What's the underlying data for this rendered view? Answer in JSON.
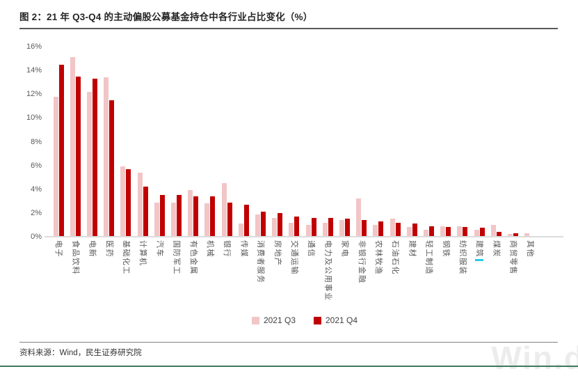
{
  "page": {
    "title": "图 2：21 年 Q3-Q4 的主动偏股公募基金持仓中各行业占比变化（%）",
    "source": "资料来源：Wind，民生证券研究院",
    "watermark": "Win.d"
  },
  "chart_data": {
    "type": "bar",
    "title": "21 年 Q3-Q4 的主动偏股公募基金持仓中各行业占比变化（%）",
    "xlabel": "",
    "ylabel": "",
    "ylim": [
      0,
      16
    ],
    "ytick_labels": [
      "16%",
      "14%",
      "12%",
      "10%",
      "8%",
      "6%",
      "4%",
      "2%",
      "0%"
    ],
    "grid": false,
    "legend_position": "bottom",
    "categories": [
      "电子",
      "食品饮料",
      "电新",
      "医药",
      "基础化工",
      "计算机",
      "汽车",
      "国防军工",
      "有色金属",
      "机械",
      "银行",
      "传媒",
      "消费者服务",
      "房地产",
      "交通运输",
      "通信",
      "电力及公用事业",
      "家电",
      "非银行金融",
      "农林牧渔",
      "石油石化",
      "建材",
      "轻工制造",
      "钢铁",
      "纺织服装",
      "建筑",
      "煤炭",
      "商贸零售",
      "其他"
    ],
    "series": [
      {
        "name": "2021 Q3",
        "color": "#f2c5c6",
        "values": [
          11.8,
          15.1,
          12.2,
          13.4,
          5.9,
          5.4,
          2.9,
          2.9,
          3.9,
          2.8,
          4.5,
          1.1,
          1.9,
          1.6,
          1.2,
          1.0,
          1.2,
          1.4,
          3.2,
          1.0,
          1.5,
          0.8,
          0.6,
          0.9,
          0.9,
          0.6,
          1.0,
          0.25,
          0.3
        ]
      },
      {
        "name": "2021 Q4",
        "color": "#c00000",
        "values": [
          14.5,
          13.5,
          13.3,
          11.5,
          5.7,
          4.2,
          3.5,
          3.5,
          3.4,
          3.4,
          2.9,
          2.7,
          2.1,
          2.0,
          1.7,
          1.6,
          1.6,
          1.5,
          1.4,
          1.3,
          1.2,
          1.1,
          0.9,
          0.85,
          0.8,
          0.75,
          0.4,
          0.3,
          0.05
        ]
      }
    ],
    "highlight": {
      "category": "建筑",
      "color": "#25c9e8"
    }
  }
}
